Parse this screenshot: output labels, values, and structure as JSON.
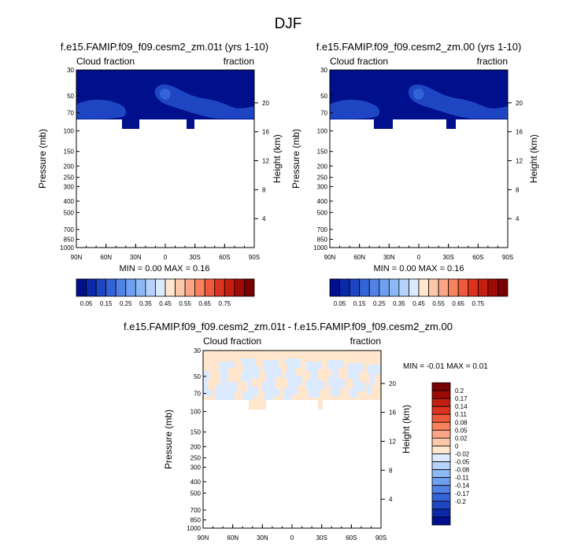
{
  "main_title": "DJF",
  "colors": {
    "seq": [
      "#000f8c",
      "#0a28a8",
      "#1e46c3",
      "#3264d7",
      "#5082e6",
      "#6e9ff0",
      "#8cb9f5",
      "#b4d2fa",
      "#dceaff",
      "#ffe6cd",
      "#fcc8aa",
      "#fca586",
      "#f8825e",
      "#ee5a3c",
      "#dc3220",
      "#c31e0f",
      "#a00a05",
      "#780000"
    ],
    "diff": [
      "#000f8c",
      "#0a28a8",
      "#1e46c3",
      "#3264d7",
      "#5082e6",
      "#6e9ff0",
      "#8cb9f5",
      "#b4d2fa",
      "#dceaff",
      "#ffe6cd",
      "#fcc8aa",
      "#fca586",
      "#f8825e",
      "#ee5a3c",
      "#dc3220",
      "#c31e0f",
      "#a00a05",
      "#780000"
    ]
  },
  "chart_data": [
    {
      "type": "contour",
      "title": "f.e15.FAMIP.f09_f09.cesm2_zm.01t (yrs 1-10)",
      "left_label": "Cloud fraction",
      "right_label": "fraction",
      "ylabel": "Pressure (mb)",
      "ylabel_right": "Height (km)",
      "x_ticks": [
        "90N",
        "60N",
        "30N",
        "0",
        "30S",
        "60S",
        "90S"
      ],
      "y_ticks": [
        "30",
        "50",
        "70",
        "100",
        "150",
        "200",
        "250",
        "300",
        "400",
        "500",
        "700",
        "850",
        "1000"
      ],
      "height_ticks": [
        "20",
        "16",
        "12",
        "8",
        "4"
      ],
      "stats": "MIN =  0.00  MAX =  0.16",
      "colorbar_labels": [
        "0.05",
        "0.15",
        "0.25",
        "0.35",
        "0.45",
        "0.55",
        "0.65",
        "0.75"
      ]
    },
    {
      "type": "contour",
      "title": "f.e15.FAMIP.f09_f09.cesm2_zm.00 (yrs 1-10)",
      "left_label": "Cloud fraction",
      "right_label": "fraction",
      "ylabel": "Pressure (mb)",
      "ylabel_right": "Height (km)",
      "x_ticks": [
        "90N",
        "60N",
        "30N",
        "0",
        "30S",
        "60S",
        "90S"
      ],
      "y_ticks": [
        "30",
        "50",
        "70",
        "100",
        "150",
        "200",
        "250",
        "300",
        "400",
        "500",
        "700",
        "850",
        "1000"
      ],
      "height_ticks": [
        "20",
        "16",
        "12",
        "8",
        "4"
      ],
      "stats": "MIN =  0.00  MAX =  0.16",
      "colorbar_labels": [
        "0.05",
        "0.15",
        "0.25",
        "0.35",
        "0.45",
        "0.55",
        "0.65",
        "0.75"
      ]
    },
    {
      "type": "contour",
      "title": "f.e15.FAMIP.f09_f09.cesm2_zm.01t - f.e15.FAMIP.f09_f09.cesm2_zm.00",
      "left_label": "Cloud fraction",
      "right_label": "fraction",
      "ylabel": "Pressure (mb)",
      "ylabel_right": "Height (km)",
      "x_ticks": [
        "90N",
        "60N",
        "30N",
        "0",
        "30S",
        "60S",
        "90S"
      ],
      "y_ticks": [
        "30",
        "50",
        "70",
        "100",
        "150",
        "200",
        "250",
        "300",
        "400",
        "500",
        "700",
        "850",
        "1000"
      ],
      "height_ticks": [
        "20",
        "16",
        "12",
        "8",
        "4"
      ],
      "stats": "MIN =  -0.01  MAX =  0.01",
      "colorbar_labels": [
        "0.2",
        "0.17",
        "0.14",
        "0.11",
        "0.08",
        "0.05",
        "0.02",
        "0",
        "-0.02",
        "-0.05",
        "-0.08",
        "-0.11",
        "-0.14",
        "-0.17",
        "-0.2"
      ]
    }
  ]
}
